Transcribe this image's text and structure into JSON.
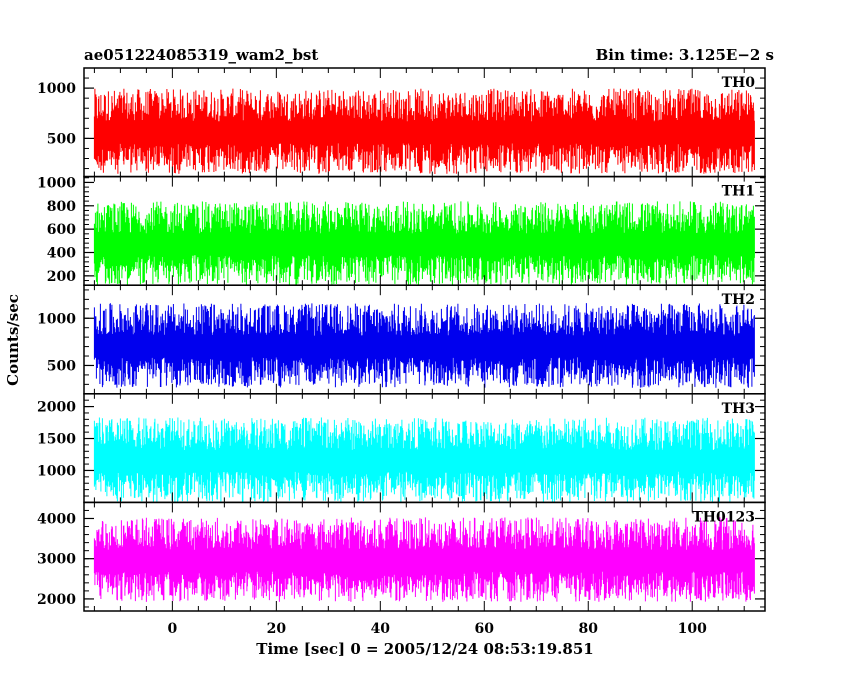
{
  "header": {
    "title": "ae051224085319_wam2_bst",
    "bin_time": "Bin time: 3.125E−2 s"
  },
  "chart_data": {
    "type": "line",
    "xlabel": "Time [sec] 0 = 2005/12/24 08:53:19.851",
    "ylabel": "Counts/sec",
    "xlim": [
      -17,
      114
    ],
    "x_data_range": [
      -15,
      112
    ],
    "x_ticks": [
      0,
      20,
      40,
      60,
      80,
      100
    ],
    "x_tick_labels": [
      "0",
      "20",
      "40",
      "60",
      "80",
      "100"
    ],
    "panels": [
      {
        "name": "TH0",
        "color": "#ff0000",
        "ylim": [
          120,
          1200
        ],
        "y_ticks": [
          500,
          1000
        ],
        "y_tick_labels": [
          "500",
          "1000"
        ],
        "mean": 560,
        "low": 110,
        "high": 1200
      },
      {
        "name": "TH1",
        "color": "#00ff00",
        "ylim": [
          120,
          1050
        ],
        "y_ticks": [
          200,
          400,
          600,
          800,
          1000
        ],
        "y_tick_labels": [
          "200",
          "400",
          "600",
          "800",
          "1000"
        ],
        "mean": 470,
        "low": 130,
        "high": 1050
      },
      {
        "name": "TH2",
        "color": "#0000ee",
        "ylim": [
          200,
          1350
        ],
        "y_ticks": [
          500,
          1000
        ],
        "y_tick_labels": [
          "500",
          "1000"
        ],
        "mean": 700,
        "low": 200,
        "high": 1350
      },
      {
        "name": "TH3",
        "color": "#00ffff",
        "ylim": [
          500,
          2200
        ],
        "y_ticks": [
          1000,
          1500,
          2000
        ],
        "y_tick_labels": [
          "1000",
          "1500",
          "2000"
        ],
        "mean": 1150,
        "low": 500,
        "high": 2200
      },
      {
        "name": "TH0123",
        "color": "#ff00ff",
        "ylim": [
          1700,
          4400
        ],
        "y_ticks": [
          2000,
          3000,
          4000
        ],
        "y_tick_labels": [
          "2000",
          "3000",
          "4000"
        ],
        "mean": 2950,
        "low": 1700,
        "high": 4400
      }
    ]
  }
}
